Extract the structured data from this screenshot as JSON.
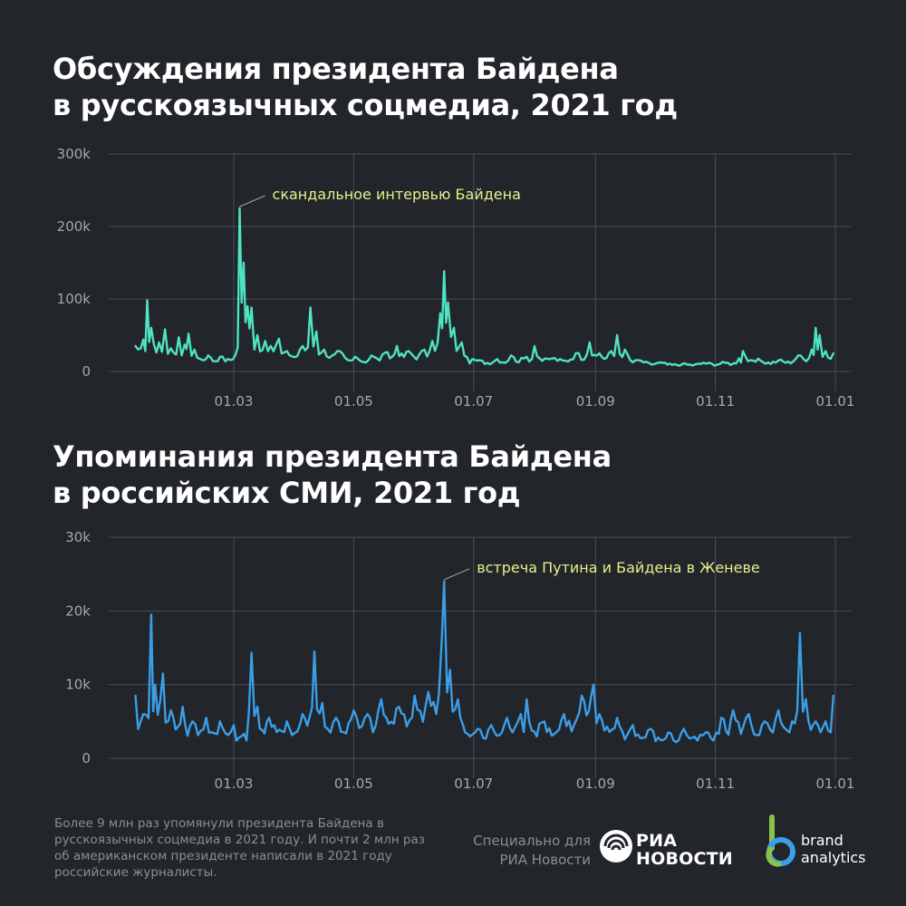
{
  "chart_data": [
    {
      "type": "line",
      "title": "Обсуждения президента Байдена в русскоязычных соцмедиа, 2021 год",
      "title_lines": [
        "Обсуждения президента Байдена",
        "в русскоязычных соцмедиа, 2021 год"
      ],
      "ylim": [
        0,
        300000
      ],
      "yticks": [
        0,
        100000,
        200000,
        300000
      ],
      "ytick_labels": [
        "0",
        "100k",
        "200k",
        "300k"
      ],
      "xticks": [
        "01.03",
        "01.05",
        "01.07",
        "01.09",
        "01.11",
        "01.01"
      ],
      "xlim": [
        "2021-01-01",
        "2022-01-01"
      ],
      "grid": true,
      "color": "#4ee3c1",
      "annotation": {
        "text": "скандальное интервью Байдена",
        "x": "2021-03-04",
        "y": 225000
      },
      "peaks": [
        [
          "2021-01-10",
          35000
        ],
        [
          "2021-01-14",
          44000
        ],
        [
          "2021-01-16",
          98000
        ],
        [
          "2021-01-18",
          60000
        ],
        [
          "2021-01-22",
          40000
        ],
        [
          "2021-01-25",
          58000
        ],
        [
          "2021-01-28",
          32000
        ],
        [
          "2021-02-01",
          47000
        ],
        [
          "2021-02-04",
          37000
        ],
        [
          "2021-02-06",
          52000
        ],
        [
          "2021-02-09",
          30000
        ],
        [
          "2021-02-16",
          22000
        ],
        [
          "2021-02-22",
          20000
        ],
        [
          "2021-03-02",
          24000
        ],
        [
          "2021-03-04",
          225000
        ],
        [
          "2021-03-06",
          150000
        ],
        [
          "2021-03-08",
          90000
        ],
        [
          "2021-03-10",
          88000
        ],
        [
          "2021-03-13",
          50000
        ],
        [
          "2021-03-17",
          42000
        ],
        [
          "2021-03-24",
          45000
        ],
        [
          "2021-03-28",
          28000
        ],
        [
          "2021-04-05",
          35000
        ],
        [
          "2021-04-09",
          88000
        ],
        [
          "2021-04-12",
          55000
        ],
        [
          "2021-04-16",
          30000
        ],
        [
          "2021-04-24",
          28000
        ],
        [
          "2021-05-03",
          18000
        ],
        [
          "2021-05-10",
          22000
        ],
        [
          "2021-05-17",
          26000
        ],
        [
          "2021-05-23",
          35000
        ],
        [
          "2021-05-29",
          28000
        ],
        [
          "2021-06-06",
          30000
        ],
        [
          "2021-06-10",
          42000
        ],
        [
          "2021-06-14",
          80000
        ],
        [
          "2021-06-16",
          138000
        ],
        [
          "2021-06-18",
          95000
        ],
        [
          "2021-06-21",
          60000
        ],
        [
          "2021-06-25",
          40000
        ],
        [
          "2021-07-03",
          15000
        ],
        [
          "2021-07-13",
          17000
        ],
        [
          "2021-07-20",
          22000
        ],
        [
          "2021-07-28",
          20000
        ],
        [
          "2021-08-01",
          35000
        ],
        [
          "2021-08-10",
          18000
        ],
        [
          "2021-08-22",
          25000
        ],
        [
          "2021-08-29",
          40000
        ],
        [
          "2021-09-03",
          25000
        ],
        [
          "2021-09-09",
          28000
        ],
        [
          "2021-09-12",
          50000
        ],
        [
          "2021-09-16",
          30000
        ],
        [
          "2021-09-24",
          15000
        ],
        [
          "2021-10-05",
          12000
        ],
        [
          "2021-10-15",
          10000
        ],
        [
          "2021-10-26",
          12000
        ],
        [
          "2021-11-06",
          12000
        ],
        [
          "2021-11-13",
          18000
        ],
        [
          "2021-11-15",
          28000
        ],
        [
          "2021-11-24",
          15000
        ],
        [
          "2021-12-03",
          15000
        ],
        [
          "2021-12-13",
          22000
        ],
        [
          "2021-12-20",
          30000
        ],
        [
          "2021-12-22",
          60000
        ],
        [
          "2021-12-24",
          50000
        ],
        [
          "2021-12-27",
          28000
        ],
        [
          "2021-12-31",
          25000
        ]
      ]
    },
    {
      "type": "line",
      "title": "Упоминания президента Байдена в российских СМИ, 2021 год",
      "title_lines": [
        "Упоминания президента Байдена",
        "в российских СМИ, 2021 год"
      ],
      "ylim": [
        0,
        30000
      ],
      "yticks": [
        0,
        10000,
        20000,
        30000
      ],
      "ytick_labels": [
        "0",
        "10k",
        "20k",
        "30k"
      ],
      "xticks": [
        "01.03",
        "01.05",
        "01.07",
        "01.09",
        "01.11",
        "01.01"
      ],
      "xlim": [
        "2021-01-01",
        "2022-01-01"
      ],
      "grid": true,
      "color": "#3b9ee8",
      "annotation": {
        "text": "встреча Путина и Байдена в Женеве",
        "x": "2021-06-16",
        "y": 24000
      },
      "peaks": [
        [
          "2021-01-10",
          8500
        ],
        [
          "2021-01-14",
          6000
        ],
        [
          "2021-01-18",
          19500
        ],
        [
          "2021-01-20",
          10000
        ],
        [
          "2021-01-24",
          11500
        ],
        [
          "2021-01-28",
          6500
        ],
        [
          "2021-02-03",
          7000
        ],
        [
          "2021-02-08",
          5000
        ],
        [
          "2021-02-15",
          5500
        ],
        [
          "2021-02-22",
          5000
        ],
        [
          "2021-03-01",
          4500
        ],
        [
          "2021-03-05",
          3000
        ],
        [
          "2021-03-10",
          14300
        ],
        [
          "2021-03-13",
          7000
        ],
        [
          "2021-03-19",
          5500
        ],
        [
          "2021-03-28",
          5000
        ],
        [
          "2021-04-05",
          6000
        ],
        [
          "2021-04-11",
          14500
        ],
        [
          "2021-04-15",
          7500
        ],
        [
          "2021-04-22",
          5500
        ],
        [
          "2021-05-01",
          6500
        ],
        [
          "2021-05-08",
          6000
        ],
        [
          "2021-05-15",
          8000
        ],
        [
          "2021-05-24",
          7000
        ],
        [
          "2021-06-01",
          8500
        ],
        [
          "2021-06-08",
          9000
        ],
        [
          "2021-06-16",
          24000
        ],
        [
          "2021-06-19",
          12000
        ],
        [
          "2021-06-23",
          8000
        ],
        [
          "2021-07-03",
          4000
        ],
        [
          "2021-07-10",
          4500
        ],
        [
          "2021-07-18",
          5500
        ],
        [
          "2021-07-25",
          6000
        ],
        [
          "2021-07-28",
          8000
        ],
        [
          "2021-08-06",
          5000
        ],
        [
          "2021-08-16",
          6000
        ],
        [
          "2021-08-25",
          8500
        ],
        [
          "2021-08-31",
          10000
        ],
        [
          "2021-09-03",
          6000
        ],
        [
          "2021-09-12",
          5500
        ],
        [
          "2021-09-20",
          4500
        ],
        [
          "2021-09-29",
          4000
        ],
        [
          "2021-10-08",
          3500
        ],
        [
          "2021-10-16",
          4000
        ],
        [
          "2021-10-27",
          3500
        ],
        [
          "2021-11-04",
          5500
        ],
        [
          "2021-11-10",
          6500
        ],
        [
          "2021-11-18",
          6000
        ],
        [
          "2021-11-26",
          5000
        ],
        [
          "2021-12-03",
          6500
        ],
        [
          "2021-12-10",
          5000
        ],
        [
          "2021-12-14",
          17000
        ],
        [
          "2021-12-17",
          8000
        ],
        [
          "2021-12-22",
          5000
        ],
        [
          "2021-12-27",
          5000
        ],
        [
          "2021-12-31",
          8500
        ]
      ]
    }
  ],
  "footer": {
    "note": "Более 9 млн раз упомянули президента Байдена в русскоязычных соцмедиа в 2021 году. И почти 2 млн раз об американском президенте написали в 2021 году российские журналисты.",
    "credit_lines": [
      "Специально для",
      "РИА Новости"
    ],
    "ria_logo_lines": [
      "РИА",
      "НОВОСТИ"
    ],
    "ba_logo_lines": [
      "brand",
      "analytics"
    ],
    "ba_colors": [
      "#8bc34a",
      "#3b9ee8"
    ]
  }
}
